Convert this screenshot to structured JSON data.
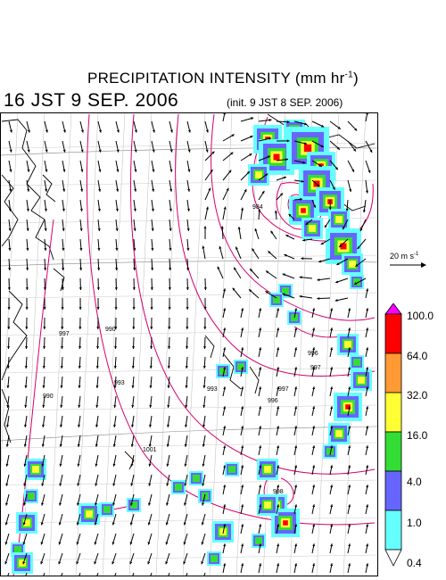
{
  "title": {
    "main": "PRECIPITATION INTENSITY (mm hr",
    "unit_exp": "-1",
    "close": ")",
    "valid_time": "16 JST 9 SEP. 2006",
    "init_time": "(init. 9 JST 8 SEP. 2006)"
  },
  "wind_reference": {
    "label": "20 m s",
    "unit_exp": "-1"
  },
  "colorbar": {
    "labels": [
      "100.0",
      "64.0",
      "32.0",
      "16.0",
      "4.0",
      "1.0",
      "0.4"
    ],
    "colors": [
      "#ff00ff",
      "#ff0000",
      "#ff9933",
      "#ffff33",
      "#33dd33",
      "#6666ff",
      "#66ffff",
      "#ffffff"
    ]
  },
  "pressure_labels": [
    "984",
    "990",
    "990",
    "993",
    "993",
    "996",
    "996",
    "997",
    "997",
    "997",
    "1001",
    "998"
  ],
  "colors": {
    "contour": "#d6006e",
    "grid": "#888888",
    "wind": "#000000"
  }
}
